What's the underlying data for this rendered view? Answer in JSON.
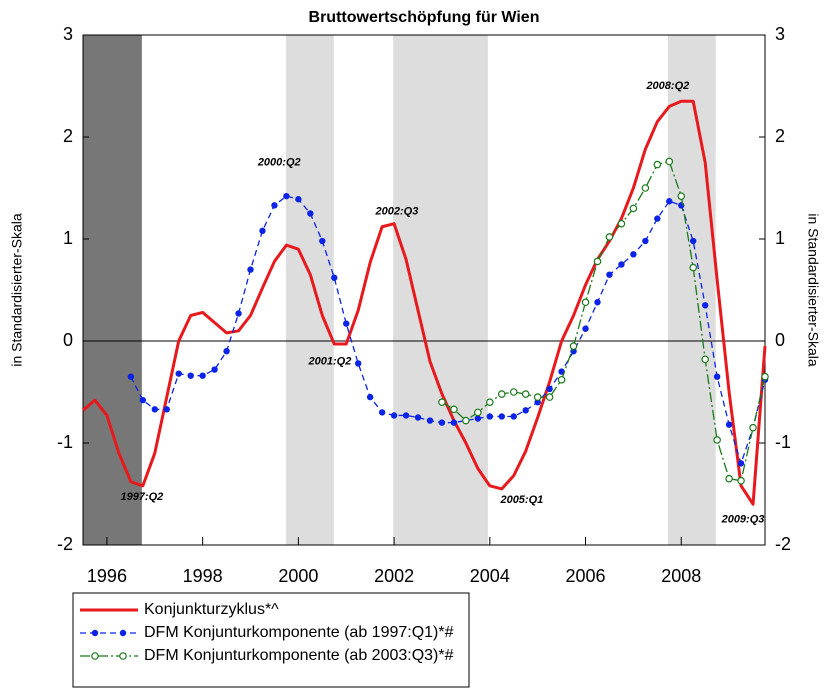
{
  "chart_data": {
    "type": "line",
    "title": "Bruttowertschöpfung für Wien",
    "ylabel": "in Standardisierter-Skala",
    "y2label": "in Standardisierter-Skala",
    "xlim": [
      1995.5,
      2009.75
    ],
    "xticks": [
      1996,
      1998,
      2000,
      2002,
      2004,
      2006,
      2008
    ],
    "ylim": [
      -2,
      3
    ],
    "yticks": [
      -2,
      -1,
      0,
      1,
      2,
      3
    ],
    "y2lim": [
      -2,
      3
    ],
    "y2ticks": [
      -2,
      -1,
      0,
      1,
      2,
      3
    ],
    "zero_line": true,
    "bands": [
      {
        "start": 1995.5,
        "end": 1996.73,
        "color": "#777777"
      },
      {
        "start": 1999.74,
        "end": 2000.74,
        "color": "#dddddd"
      },
      {
        "start": 2001.98,
        "end": 2003.96,
        "color": "#dddddd"
      },
      {
        "start": 2007.72,
        "end": 2008.72,
        "color": "#dddddd"
      }
    ],
    "x": [
      1995.5,
      1995.75,
      1996,
      1996.25,
      1996.5,
      1996.75,
      1997,
      1997.25,
      1997.5,
      1997.75,
      1998,
      1998.25,
      1998.5,
      1998.75,
      1999,
      1999.25,
      1999.5,
      1999.75,
      2000,
      2000.25,
      2000.5,
      2000.75,
      2001,
      2001.25,
      2001.5,
      2001.75,
      2002,
      2002.25,
      2002.5,
      2002.75,
      2003,
      2003.25,
      2003.5,
      2003.75,
      2004,
      2004.25,
      2004.5,
      2004.75,
      2005,
      2005.25,
      2005.5,
      2005.75,
      2006,
      2006.25,
      2006.5,
      2006.75,
      2007,
      2007.25,
      2007.5,
      2007.75,
      2008,
      2008.25,
      2008.5,
      2008.75,
      2009,
      2009.25,
      2009.5,
      2009.75
    ],
    "series": [
      {
        "name": "Konjunkturzyklus*^",
        "color": "#e8191c",
        "marker": "none",
        "dash": "solid",
        "values": [
          -0.68,
          -0.58,
          -0.73,
          -1.1,
          -1.38,
          -1.42,
          -1.1,
          -0.55,
          0.0,
          0.25,
          0.28,
          0.18,
          0.08,
          0.1,
          0.25,
          0.52,
          0.78,
          0.94,
          0.9,
          0.65,
          0.25,
          -0.03,
          -0.03,
          0.3,
          0.77,
          1.12,
          1.15,
          0.8,
          0.3,
          -0.2,
          -0.52,
          -0.78,
          -1.0,
          -1.25,
          -1.42,
          -1.45,
          -1.32,
          -1.08,
          -0.75,
          -0.4,
          0.0,
          0.25,
          0.55,
          0.8,
          0.98,
          1.2,
          1.5,
          1.88,
          2.15,
          2.3,
          2.35,
          2.35,
          1.75,
          0.6,
          -0.5,
          -1.42,
          -1.6,
          -0.05
        ]
      },
      {
        "name": "DFM Konjunturkomponente (ab 1997:Q1)*#",
        "color": "#0a23e6",
        "marker": "filled",
        "dash": "dashed",
        "values": [
          null,
          null,
          null,
          null,
          -0.35,
          -0.58,
          -0.67,
          -0.67,
          -0.32,
          -0.34,
          -0.34,
          -0.28,
          -0.1,
          0.27,
          0.7,
          1.08,
          1.33,
          1.42,
          1.39,
          1.25,
          0.98,
          0.62,
          0.17,
          -0.22,
          -0.55,
          -0.7,
          -0.73,
          -0.73,
          -0.75,
          -0.78,
          -0.8,
          -0.8,
          -0.78,
          -0.76,
          -0.74,
          -0.74,
          -0.74,
          -0.68,
          -0.6,
          -0.47,
          -0.3,
          -0.1,
          0.12,
          0.38,
          0.65,
          0.75,
          0.85,
          0.98,
          1.2,
          1.37,
          1.33,
          0.98,
          0.35,
          -0.35,
          -0.82,
          -1.2,
          -0.85,
          -0.38
        ]
      },
      {
        "name": "DFM Konjunturkomponente (ab 2003:Q3)*#",
        "color": "#1a7a1a",
        "marker": "open",
        "dash": "dashdot",
        "values": [
          null,
          null,
          null,
          null,
          null,
          null,
          null,
          null,
          null,
          null,
          null,
          null,
          null,
          null,
          null,
          null,
          null,
          null,
          null,
          null,
          null,
          null,
          null,
          null,
          null,
          null,
          null,
          null,
          null,
          null,
          -0.6,
          -0.67,
          -0.78,
          -0.7,
          -0.6,
          -0.52,
          -0.5,
          -0.52,
          -0.55,
          -0.55,
          -0.38,
          -0.05,
          0.38,
          0.78,
          1.02,
          1.15,
          1.3,
          1.5,
          1.73,
          1.76,
          1.42,
          0.72,
          -0.18,
          -0.97,
          -1.35,
          -1.37,
          -0.85,
          -0.35
        ]
      }
    ],
    "annotations": [
      {
        "text": "1997:Q2",
        "x": 1996.73,
        "y": -1.53
      },
      {
        "text": "2000:Q2",
        "x": 1999.6,
        "y": 1.75
      },
      {
        "text": "2001:Q2",
        "x": 2000.66,
        "y": -0.2
      },
      {
        "text": "2002:Q3",
        "x": 2002.06,
        "y": 1.27
      },
      {
        "text": "2005:Q1",
        "x": 2004.67,
        "y": -1.56
      },
      {
        "text": "2008:Q2",
        "x": 2007.72,
        "y": 2.5
      },
      {
        "text": "2009:Q3",
        "x": 2009.29,
        "y": -1.75
      }
    ]
  }
}
